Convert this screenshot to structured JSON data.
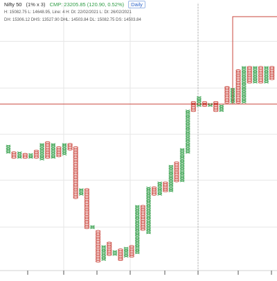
{
  "chart_data": {
    "type": "point_and_figure",
    "symbol": "Nifty 50",
    "params": "(1% x 3)",
    "cmp": "CMP: 23205.85 (120.90, 0.52%)",
    "interval": "Daily",
    "info_line_1": "H: 15082.75 L: 14648.95, Line: 4 H: Dt: 22/02/2021 L: Dt: 26/02/2021",
    "info_line_2": "DH: 15306.12 DHS: 13527.90 DHL: 14503.84 DL: 15082.75 DS: 14503.84",
    "columns": [
      {
        "kind": "X",
        "low": 14.2,
        "high": 15.0
      },
      {
        "kind": "O",
        "low": 13.6,
        "high": 14.2
      },
      {
        "kind": "X",
        "low": 13.6,
        "high": 14.2
      },
      {
        "kind": "O",
        "low": 13.4,
        "high": 14.0
      },
      {
        "kind": "X",
        "low": 13.4,
        "high": 14.0
      },
      {
        "kind": "O",
        "low": 13.6,
        "high": 14.4
      },
      {
        "kind": "X",
        "low": 13.4,
        "high": 15.2
      },
      {
        "kind": "O",
        "low": 13.6,
        "high": 15.4
      },
      {
        "kind": "X",
        "low": 13.6,
        "high": 15.2
      },
      {
        "kind": "O",
        "low": 13.8,
        "high": 14.8
      },
      {
        "kind": "X",
        "low": 14.0,
        "high": 15.2
      },
      {
        "kind": "O",
        "low": 14.6,
        "high": 15.2
      },
      {
        "kind": "O",
        "low": 8.6,
        "high": 14.8
      },
      {
        "kind": "X",
        "low": 9.0,
        "high": 9.8
      },
      {
        "kind": "O",
        "low": 5.0,
        "high": 9.8
      },
      {
        "kind": "X",
        "low": 5.0,
        "high": 5.4
      },
      {
        "kind": "O",
        "low": 1.0,
        "high": 4.8
      },
      {
        "kind": "X",
        "low": 1.2,
        "high": 3.0
      },
      {
        "kind": "O",
        "low": 1.8,
        "high": 3.4
      },
      {
        "kind": "X",
        "low": 1.8,
        "high": 2.4
      },
      {
        "kind": "O",
        "low": 1.2,
        "high": 2.6
      },
      {
        "kind": "X",
        "low": 1.6,
        "high": 2.8
      },
      {
        "kind": "O",
        "low": 1.6,
        "high": 3.0
      },
      {
        "kind": "X",
        "low": 2.0,
        "high": 7.8
      },
      {
        "kind": "O",
        "low": 4.8,
        "high": 7.8
      },
      {
        "kind": "X",
        "low": 4.4,
        "high": 10.0
      },
      {
        "kind": "O",
        "low": 9.0,
        "high": 10.0
      },
      {
        "kind": "X",
        "low": 9.0,
        "high": 10.6
      },
      {
        "kind": "O",
        "low": 9.4,
        "high": 10.6
      },
      {
        "kind": "X",
        "low": 9.4,
        "high": 12.6
      },
      {
        "kind": "O",
        "low": 10.6,
        "high": 13.0
      },
      {
        "kind": "X",
        "low": 10.6,
        "high": 14.6
      },
      {
        "kind": "X",
        "low": 14.2,
        "high": 19.2
      },
      {
        "kind": "O",
        "low": 19.2,
        "high": 20.2
      },
      {
        "kind": "X",
        "low": 19.8,
        "high": 20.8
      },
      {
        "kind": "O",
        "low": 19.6,
        "high": 20.2
      },
      {
        "kind": "X",
        "low": 19.6,
        "high": 20.0
      },
      {
        "kind": "O",
        "low": 19.2,
        "high": 20.2
      },
      {
        "kind": "X",
        "low": 19.2,
        "high": 19.8
      },
      {
        "kind": "O",
        "low": 20.2,
        "high": 22.0
      },
      {
        "kind": "X",
        "low": 20.2,
        "high": 21.8
      },
      {
        "kind": "O",
        "low": 20.2,
        "high": 24.0
      },
      {
        "kind": "X",
        "low": 20.2,
        "high": 24.4
      },
      {
        "kind": "O",
        "low": 22.6,
        "high": 24.4
      },
      {
        "kind": "X",
        "low": 22.6,
        "high": 24.4
      },
      {
        "kind": "O",
        "low": 22.6,
        "high": 24.4
      },
      {
        "kind": "X",
        "low": 22.6,
        "high": 24.4
      },
      {
        "kind": "O",
        "low": 22.8,
        "high": 24.4
      }
    ],
    "value_range": [
      0,
      32
    ],
    "grid": true,
    "colors": {
      "x": "#2e9c45",
      "o": "#c9443b",
      "crosshair": "#c9443b",
      "grid": "#e6e6e6",
      "vline": "#b0b0b0"
    }
  }
}
